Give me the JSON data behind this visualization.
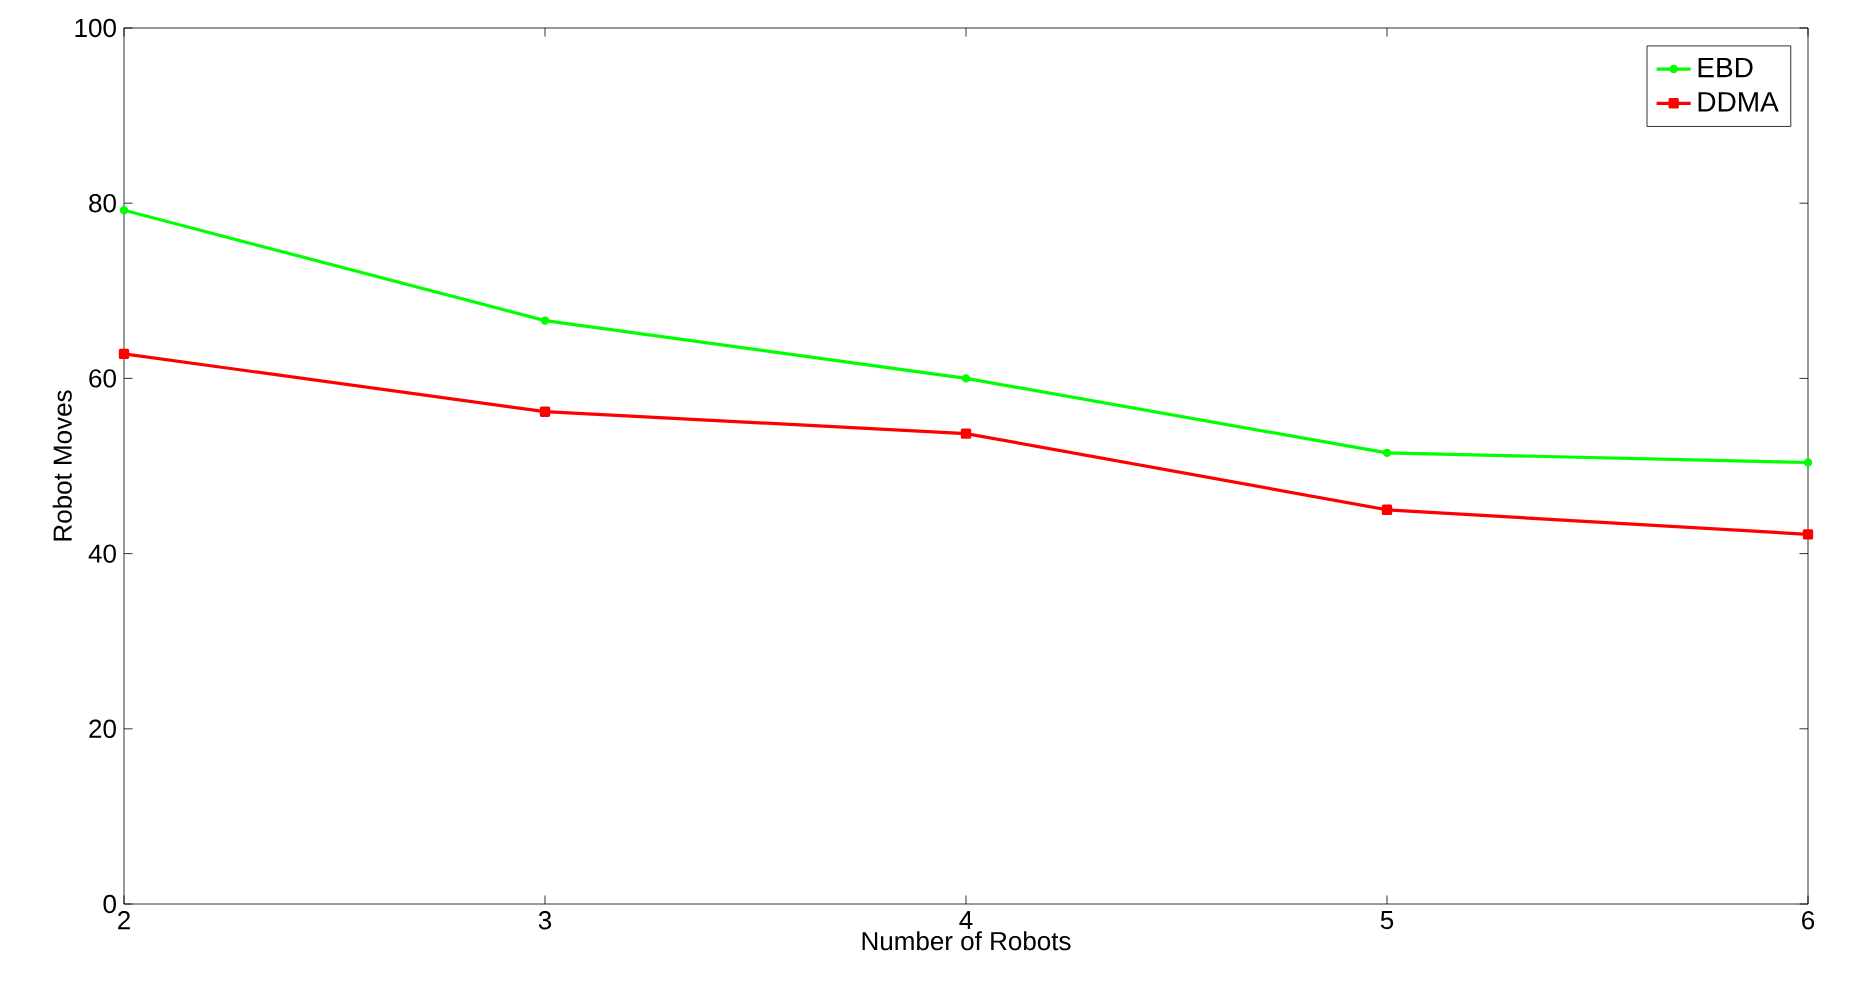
{
  "chart_data": {
    "type": "line",
    "xlabel": "Number of Robots",
    "ylabel": "Robot Moves",
    "x": [
      2,
      3,
      4,
      5,
      6
    ],
    "series": [
      {
        "name": "EBD",
        "color": "#00ff00",
        "marker": "circle",
        "values": [
          79.2,
          66.6,
          60.0,
          51.5,
          50.4
        ]
      },
      {
        "name": "DDMA",
        "color": "#ff0000",
        "marker": "square",
        "values": [
          62.8,
          56.2,
          53.7,
          45.0,
          42.2
        ]
      }
    ],
    "xlim": [
      2,
      6
    ],
    "ylim": [
      0,
      100
    ],
    "xticks": [
      2,
      3,
      4,
      5,
      6
    ],
    "yticks": [
      0,
      20,
      40,
      60,
      80,
      100
    ],
    "grid": false,
    "legend": "top right",
    "line_style": "solid"
  }
}
